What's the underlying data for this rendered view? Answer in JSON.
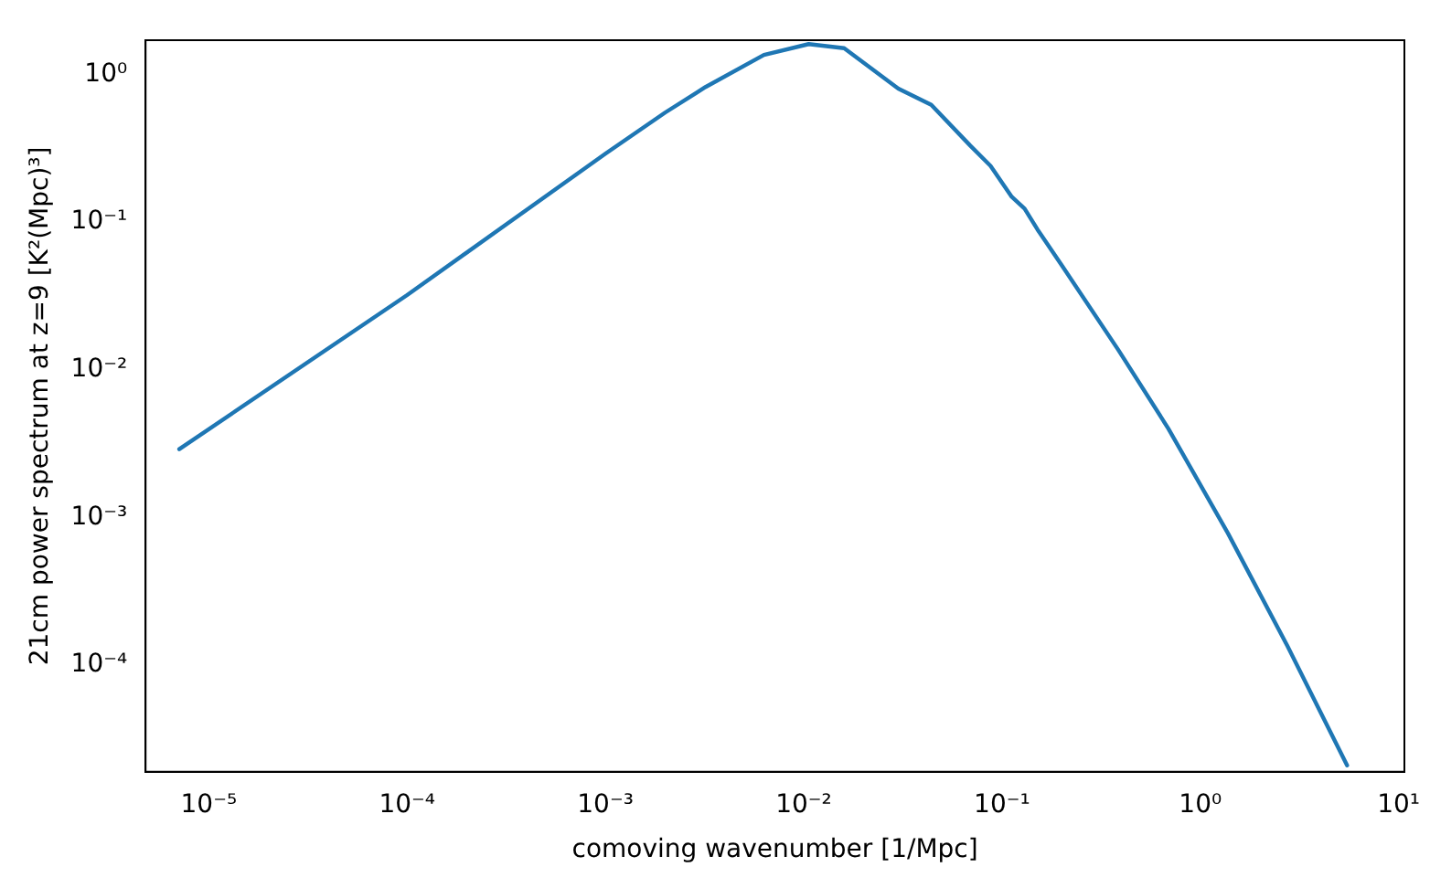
{
  "chart_data": {
    "type": "line",
    "xlabel": "comoving wavenumber [1/Mpc]",
    "ylabel": "21cm power spectrum at z=9 [K²(Mpc)³]",
    "log": "xy",
    "grid": false,
    "legend": false,
    "marker": "none",
    "line_style": "solid",
    "xlim": [
      4.8e-06,
      10.7
    ],
    "ylim": [
      1.9e-05,
      1.7
    ],
    "xticks": [
      {
        "value": 1e-05,
        "label": "10⁻⁵"
      },
      {
        "value": 0.0001,
        "label": "10⁻⁴"
      },
      {
        "value": 0.001,
        "label": "10⁻³"
      },
      {
        "value": 0.01,
        "label": "10⁻²"
      },
      {
        "value": 0.1,
        "label": "10⁻¹"
      },
      {
        "value": 1,
        "label": "10⁰"
      },
      {
        "value": 10,
        "label": "10¹"
      }
    ],
    "yticks": [
      {
        "value": 0.0001,
        "label": "10⁻⁴"
      },
      {
        "value": 0.001,
        "label": "10⁻³"
      },
      {
        "value": 0.01,
        "label": "10⁻²"
      },
      {
        "value": 0.1,
        "label": "10⁻¹"
      },
      {
        "value": 1,
        "label": "10⁰"
      }
    ],
    "series": [
      {
        "color": "#1f77b4",
        "x": [
          7.1e-06,
          0.0001,
          0.001,
          0.002,
          0.0032,
          0.0063,
          0.0106,
          0.016,
          0.03,
          0.044,
          0.069,
          0.0875,
          0.112,
          0.13,
          0.151,
          0.2,
          0.385,
          0.69,
          1.38,
          2.75,
          5.5
        ],
        "values": [
          0.0029,
          0.032,
          0.29,
          0.55,
          0.82,
          1.35,
          1.6,
          1.5,
          0.8,
          0.62,
          0.33,
          0.24,
          0.148,
          0.123,
          0.089,
          0.051,
          0.0137,
          0.004,
          0.00078,
          0.000135,
          2.1e-05
        ]
      }
    ]
  }
}
